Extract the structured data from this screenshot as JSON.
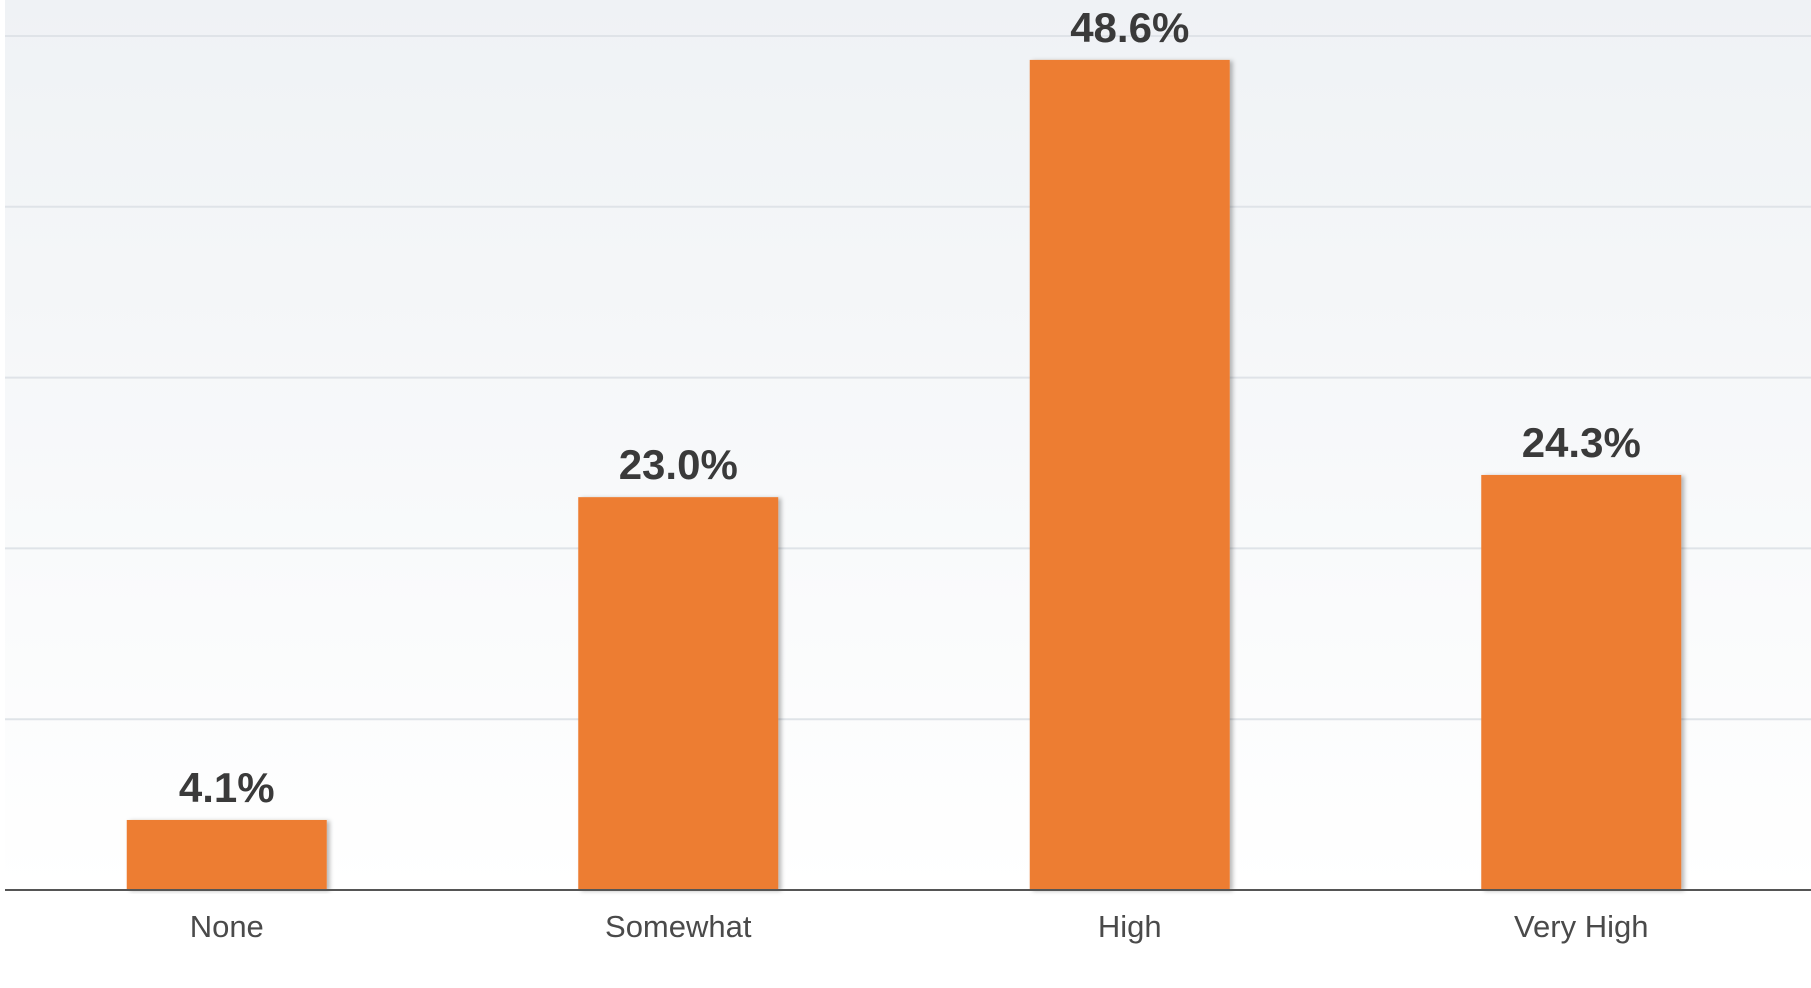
{
  "chart_data": {
    "type": "bar",
    "categories": [
      "None",
      "Somewhat",
      "High",
      "Very High"
    ],
    "values": [
      4.1,
      23.0,
      48.6,
      24.3
    ],
    "value_labels": [
      "4.1%",
      "23.0%",
      "48.6%",
      "24.3%"
    ],
    "title": "",
    "xlabel": "",
    "ylabel": "",
    "ylim": [
      0,
      50
    ],
    "grid": true,
    "legend": "none",
    "colors": {
      "bar": "#ED7D31",
      "grid": "#dfe3e8",
      "axis": "#555555",
      "plot_bg_top": "#eff2f5",
      "plot_bg_bottom": "#ffffff"
    }
  }
}
